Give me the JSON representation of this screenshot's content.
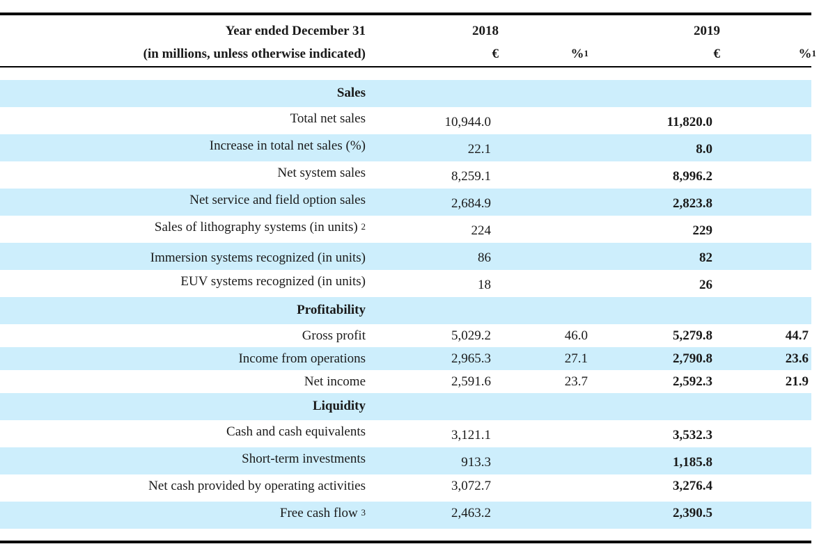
{
  "header": {
    "label_line1": "Year ended December 31",
    "label_line2": "(in millions, unless otherwise indicated)",
    "year_2018": "2018",
    "year_2019": "2019",
    "currency_2018": "€",
    "pct_2018": "%",
    "pct_2018_note": "1",
    "currency_2019": "€",
    "pct_2019": "%",
    "pct_2019_note": "1"
  },
  "rows": [
    {
      "type": "section",
      "label": "Sales"
    },
    {
      "type": "data",
      "label": "Total net sales",
      "v2018": "10,944.0",
      "v2019": "11,820.0"
    },
    {
      "type": "data",
      "label": "Increase in total net sales (%)",
      "v2018": "22.1",
      "v2019": "8.0"
    },
    {
      "type": "data",
      "label": "Net system sales",
      "v2018": "8,259.1",
      "v2019": "8,996.2"
    },
    {
      "type": "data",
      "label": "Net service and field option sales",
      "v2018": "2,684.9",
      "v2019": "2,823.8"
    },
    {
      "type": "data",
      "label": "Sales of lithography systems (in units)",
      "note": "2",
      "v2018": "224",
      "v2019": "229"
    },
    {
      "type": "data",
      "label": "Immersion systems recognized (in units)",
      "v2018": "86",
      "v2019": "82"
    },
    {
      "type": "data",
      "label": "EUV systems recognized (in units)",
      "v2018": "18",
      "v2019": "26"
    },
    {
      "type": "section",
      "label": "Profitability"
    },
    {
      "type": "data",
      "label": "Gross profit",
      "v2018": "5,029.2",
      "p2018": "46.0",
      "v2019": "5,279.8",
      "p2019": "44.7"
    },
    {
      "type": "data",
      "label": "Income from operations",
      "v2018": "2,965.3",
      "p2018": "27.1",
      "v2019": "2,790.8",
      "p2019": "23.6"
    },
    {
      "type": "data",
      "label": "Net income",
      "v2018": "2,591.6",
      "p2018": "23.7",
      "v2019": "2,592.3",
      "p2019": "21.9"
    },
    {
      "type": "section",
      "label": "Liquidity"
    },
    {
      "type": "data",
      "label": "Cash and cash equivalents",
      "v2018": "3,121.1",
      "v2019": "3,532.3"
    },
    {
      "type": "data",
      "label": "Short-term investments",
      "v2018": "913.3",
      "v2019": "1,185.8"
    },
    {
      "type": "data",
      "label": "Net cash provided by operating activities",
      "v2018": "3,072.7",
      "v2019": "3,276.4"
    },
    {
      "type": "data",
      "label": "Free cash flow",
      "note": "3",
      "v2018": "2,463.2",
      "v2019": "2,390.5"
    }
  ]
}
